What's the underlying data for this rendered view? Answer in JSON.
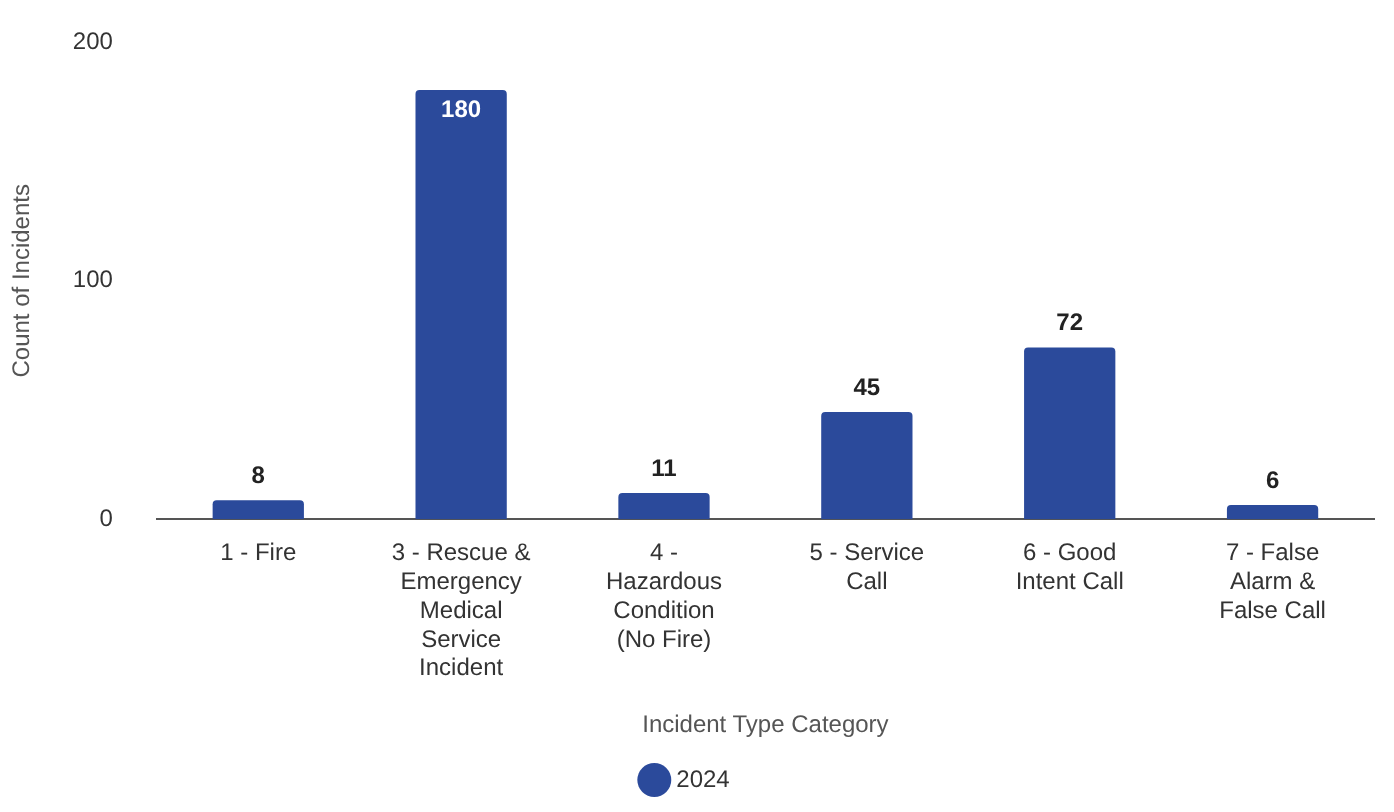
{
  "chart_data": {
    "type": "bar",
    "xlabel": "Incident Type Category",
    "ylabel": "Count of Incidents",
    "categories": [
      "1 - Fire",
      "3 - Rescue & Emergency Medical Service Incident",
      "4 - Hazardous Condition (No Fire)",
      "5 - Service Call",
      "6 - Good Intent Call",
      "7 - False Alarm & False Call"
    ],
    "series": [
      {
        "name": "2024",
        "color": "#2b4a9b",
        "values": [
          8,
          180,
          11,
          45,
          72,
          6
        ]
      }
    ],
    "ylim": [
      0,
      200
    ],
    "yticks": [
      0,
      100,
      200
    ],
    "grid": false,
    "legend": "bottom",
    "data_labels": true
  }
}
